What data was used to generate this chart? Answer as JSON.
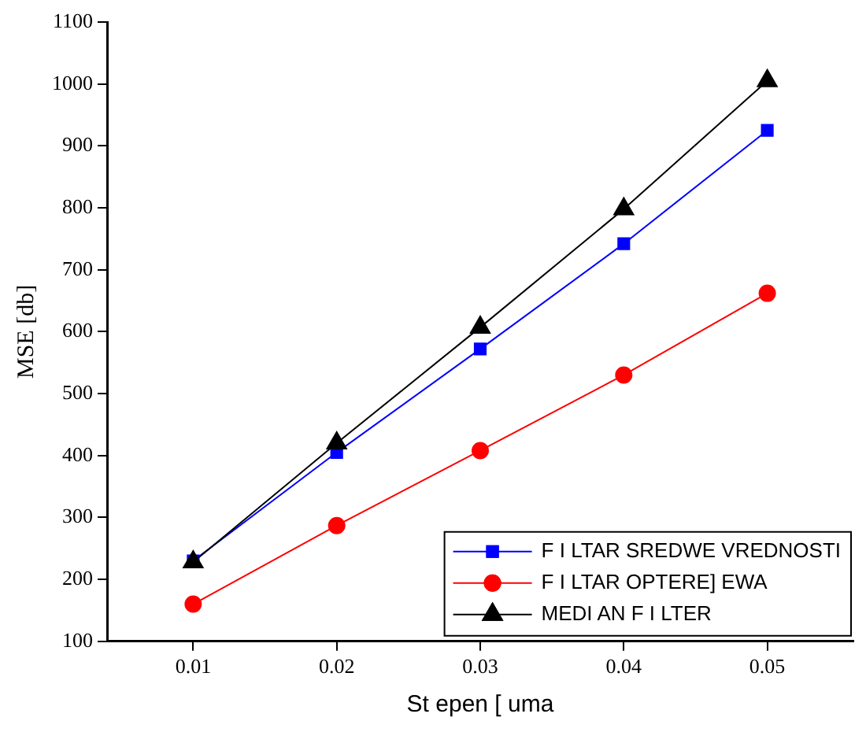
{
  "chart_data": {
    "type": "line",
    "xlabel": "St epen [ uma",
    "ylabel": "MSE [db]",
    "x": [
      0.01,
      0.02,
      0.03,
      0.04,
      0.05
    ],
    "xlim": [
      0.004,
      0.056
    ],
    "xticks": [
      0.01,
      0.02,
      0.03,
      0.04,
      0.05
    ],
    "ylim": [
      100,
      1100
    ],
    "yticks": [
      100,
      200,
      300,
      400,
      500,
      600,
      700,
      800,
      900,
      1000,
      1100
    ],
    "grid": false,
    "legend": "bottom right",
    "line_style": "solid",
    "series": [
      {
        "name": "F I LTAR SREDWE VREDNOSTI",
        "color": "#0000ff",
        "marker": "square",
        "values": [
          230,
          405,
          572,
          742,
          925
        ]
      },
      {
        "name": "F I LTAR OPTERE] EWA",
        "color": "#ff0000",
        "marker": "circle",
        "values": [
          160,
          287,
          408,
          530,
          662
        ]
      },
      {
        "name": "MEDI AN F I LTER",
        "color": "#000000",
        "marker": "triangle",
        "values": [
          228,
          420,
          607,
          798,
          1005
        ]
      }
    ]
  }
}
